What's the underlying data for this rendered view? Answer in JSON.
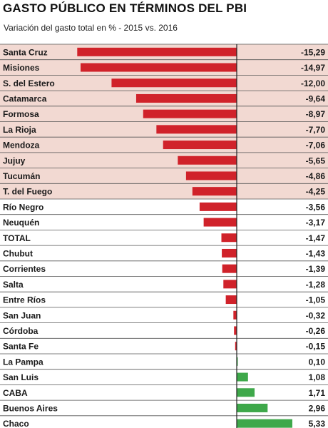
{
  "chart_data": {
    "type": "bar",
    "orientation": "horizontal",
    "title": "GASTO PÚBLICO EN TÉRMINOS DEL PBI",
    "subtitle": "Variación del gasto total en % - 2015 vs. 2016",
    "categories": [
      "Santa Cruz",
      "Misiones",
      "S. del Estero",
      "Catamarca",
      "Formosa",
      "La Rioja",
      "Mendoza",
      "Jujuy",
      "Tucumán",
      "T. del Fuego",
      "Río Negro",
      "Neuquén",
      "TOTAL",
      "Chubut",
      "Corrientes",
      "Salta",
      "Entre Ríos",
      "San Juan",
      "Córdoba",
      "Santa Fe",
      "La Pampa",
      "San Luis",
      "CABA",
      "Buenos Aires",
      "Chaco"
    ],
    "values": [
      -15.29,
      -14.97,
      -12.0,
      -9.64,
      -8.97,
      -7.7,
      -7.06,
      -5.65,
      -4.86,
      -4.25,
      -3.56,
      -3.17,
      -1.47,
      -1.43,
      -1.39,
      -1.28,
      -1.05,
      -0.32,
      -0.26,
      -0.15,
      0.1,
      1.08,
      1.71,
      2.96,
      5.33
    ],
    "value_labels": [
      "-15,29",
      "-14,97",
      "-12,00",
      "-9,64",
      "-8,97",
      "-7,70",
      "-7,06",
      "-5,65",
      "-4,86",
      "-4,25",
      "-3,56",
      "-3,17",
      "-1,47",
      "-1,43",
      "-1,39",
      "-1,28",
      "-1,05",
      "-0,32",
      "-0,26",
      "-0,15",
      "0,10",
      "1,08",
      "1,71",
      "2,96",
      "5,33"
    ],
    "highlighted_rows": 10,
    "colors": {
      "negative": "#d0222a",
      "positive": "#3ea84a",
      "highlight_background": "#f2d9d2",
      "row_divider": "#555555",
      "zero_line": "#222222",
      "text": "#1a1a1a"
    }
  }
}
